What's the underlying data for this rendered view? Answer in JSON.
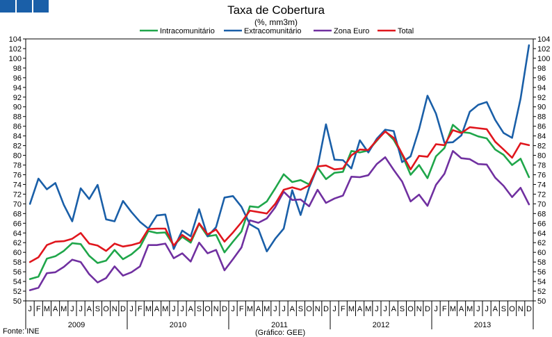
{
  "chart_data": {
    "type": "line",
    "title": "Taxa de Cobertura",
    "subtitle": "(%, mm3m)",
    "source": "Fonte: INE",
    "credit": "(Gráfico: GEE)",
    "xlabel": "",
    "ylabel": "",
    "ylim": [
      50,
      104
    ],
    "yticks": [
      50,
      52,
      54,
      56,
      58,
      60,
      62,
      64,
      66,
      68,
      70,
      72,
      74,
      76,
      78,
      80,
      82,
      84,
      86,
      88,
      90,
      92,
      94,
      96,
      98,
      100,
      102,
      104
    ],
    "month_labels": [
      "J",
      "F",
      "M",
      "A",
      "M",
      "J",
      "J",
      "A",
      "S",
      "O",
      "N",
      "D"
    ],
    "years": [
      "2009",
      "2010",
      "2011",
      "2012",
      "2013"
    ],
    "series": [
      {
        "name": "Intracomunitário",
        "color": "#1fa64a",
        "values": [
          54.5,
          55,
          58.7,
          59.2,
          60.3,
          61.9,
          61.7,
          59.3,
          57.8,
          58.3,
          60.5,
          58.6,
          59.6,
          61.1,
          64.4,
          64,
          64.1,
          61.4,
          63.2,
          62,
          65.9,
          63.3,
          63.6,
          60,
          62.2,
          64.3,
          69.5,
          69.3,
          70.5,
          73.2,
          76.1,
          74.5,
          74.9,
          74,
          77.5,
          75.1,
          76.4,
          76.6,
          80.9,
          80.6,
          81,
          83,
          85,
          83.2,
          80.1,
          76,
          78,
          75.3,
          79.8,
          81.5,
          86.3,
          84.8,
          84.6,
          83.9,
          83.5,
          81.2,
          80.1,
          78,
          79.3,
          75.5
        ]
      },
      {
        "name": "Extracomunitário",
        "color": "#1a5fa8",
        "values": [
          70,
          75.2,
          73,
          74.3,
          69.8,
          66.4,
          73.2,
          71,
          73.9,
          66.8,
          66.4,
          70.6,
          68.3,
          66.3,
          64.9,
          67.6,
          67.8,
          60.7,
          64.5,
          63.3,
          68.9,
          63.3,
          65.2,
          71.3,
          71.6,
          69.4,
          65.8,
          64.8,
          60.2,
          62.8,
          64.9,
          72.8,
          67.7,
          73.3,
          77.6,
          86.4,
          79.1,
          79,
          77.3,
          83.1,
          80.6,
          83.4,
          85.3,
          85,
          78.6,
          79.8,
          85.4,
          92.3,
          88.6,
          82.6,
          82.7,
          84.1,
          89,
          90.4,
          91,
          87.3,
          84.6,
          83.6,
          91.7,
          102.7
        ]
      },
      {
        "name": "Zona Euro",
        "color": "#7030a0",
        "values": [
          52.2,
          52.7,
          55.7,
          55.9,
          57,
          58.5,
          58,
          55.5,
          53.8,
          54.7,
          57.1,
          55.2,
          55.9,
          57.1,
          61.5,
          61.5,
          61.8,
          58.8,
          59.8,
          58.1,
          62,
          59.8,
          60.5,
          56.3,
          58.6,
          61,
          66.6,
          66.1,
          67,
          69.3,
          72.5,
          70.8,
          70.9,
          69.5,
          72.9,
          70.2,
          71.1,
          71.7,
          75.6,
          75.5,
          75.9,
          78.2,
          79.6,
          77,
          74.6,
          70.5,
          71.9,
          69.6,
          73.9,
          76.2,
          80.9,
          79.4,
          79.2,
          78.2,
          78.1,
          75.4,
          73.7,
          71.4,
          73.3,
          69.9
        ]
      },
      {
        "name": "Total",
        "color": "#e0161d",
        "values": [
          58,
          59,
          61.5,
          62.2,
          62.3,
          62.8,
          64,
          61.8,
          61.4,
          60.3,
          61.8,
          61.2,
          61.5,
          62,
          64.8,
          64.9,
          64.9,
          61.4,
          63.6,
          62.4,
          66,
          63.7,
          64.7,
          62.2,
          64.1,
          66.2,
          68.6,
          68.3,
          68,
          70,
          72.9,
          73.4,
          72.9,
          73.8,
          77.7,
          77.9,
          77.1,
          77.3,
          80,
          81.2,
          81.1,
          83.1,
          84.9,
          83.6,
          80.3,
          77.1,
          79.9,
          79.7,
          82.3,
          82.1,
          85.2,
          84.6,
          85.8,
          85.6,
          85.4,
          82.8,
          81.2,
          79.5,
          82.5,
          82.1
        ]
      }
    ]
  }
}
